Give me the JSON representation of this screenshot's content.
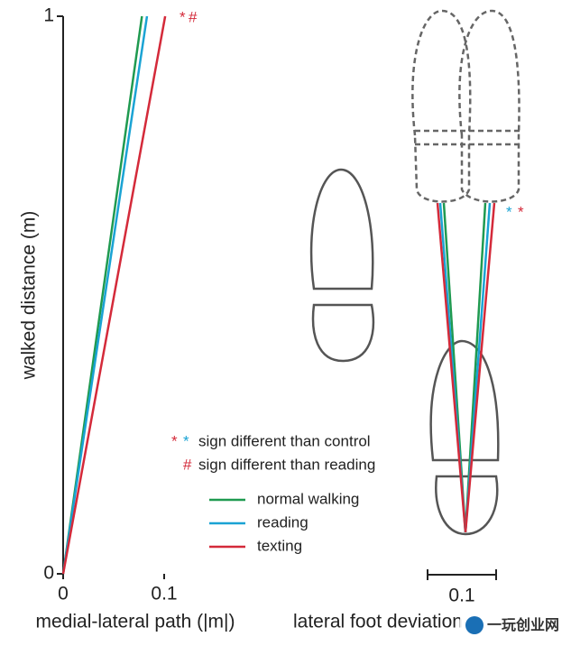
{
  "chart_data": [
    {
      "type": "line",
      "ylabel": "walked distance (m)",
      "xlabel": "medial-lateral path (|m|)",
      "xlim": [
        0,
        0.1
      ],
      "xticks": [
        0,
        0.1
      ],
      "ylim": [
        0,
        1
      ],
      "yticks": [
        0,
        1
      ],
      "series": [
        {
          "name": "normal walking",
          "color": "#1f9a50",
          "x": [
            0,
            0.078
          ],
          "values": [
            0,
            1
          ]
        },
        {
          "name": "reading",
          "color": "#1aa3d4",
          "x": [
            0,
            0.083
          ],
          "values": [
            0,
            1
          ]
        },
        {
          "name": "texting",
          "color": "#d42a3a",
          "x": [
            0,
            0.101
          ],
          "values": [
            0,
            1
          ]
        }
      ],
      "markers": [
        "*",
        "#"
      ],
      "notes": [
        {
          "symbols": [
            "*",
            "*"
          ],
          "text": "sign different than control"
        },
        {
          "symbols": [
            "#"
          ],
          "text": "sign different than reading"
        }
      ]
    },
    {
      "type": "schematic",
      "xlabel": "lateral foot deviation",
      "scale_label": "0.1",
      "markers": [
        "*",
        "*"
      ],
      "watermark": "一玩创业网"
    }
  ]
}
